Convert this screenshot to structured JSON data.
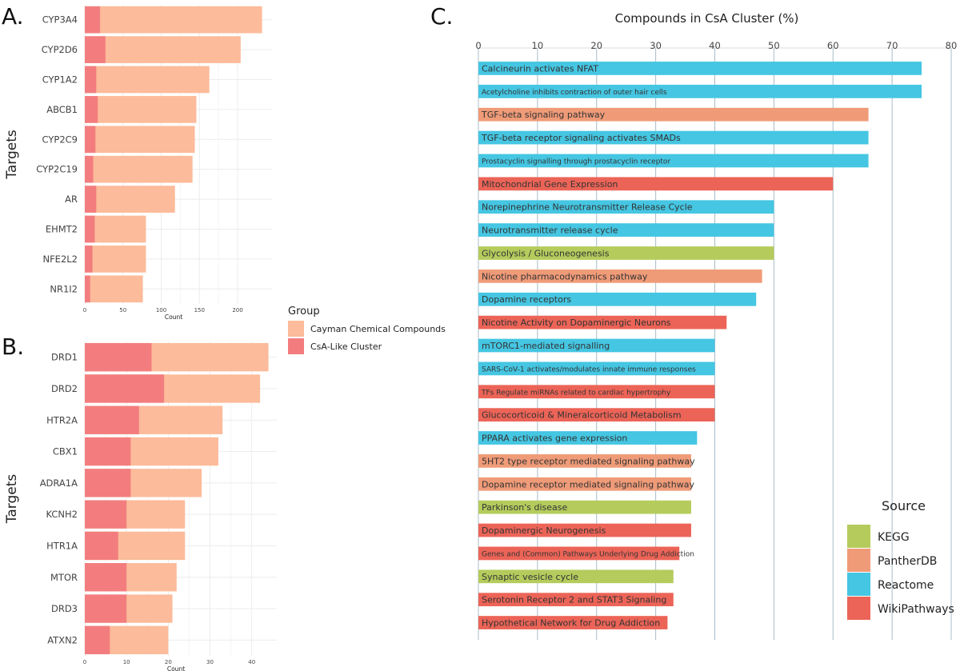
{
  "panel_letters": {
    "a": "A.",
    "b": "B.",
    "c": "C."
  },
  "chart_data": [
    {
      "type": "bar",
      "orientation": "horizontal",
      "stacked": false,
      "categories": [
        "CYP3A4",
        "CYP2D6",
        "CYP1A2",
        "ABCB1",
        "CYP2C9",
        "CYP2C19",
        "AR",
        "EHMT2",
        "NFE2L2",
        "NR1I2"
      ],
      "series": [
        {
          "name": "Cayman Chemical Compounds",
          "color": "#fcbb9a",
          "values": [
            232,
            204,
            163,
            146,
            144,
            141,
            118,
            80,
            80,
            76
          ]
        },
        {
          "name": "CsA-Like Cluster",
          "color": "#f37d7e",
          "values": [
            20,
            27,
            15,
            17,
            14,
            11,
            15,
            13,
            10,
            7
          ]
        }
      ],
      "xlabel": "Count",
      "ylabel": "Targets",
      "xticks": [
        0,
        50,
        100,
        150,
        200
      ],
      "xlim": [
        0,
        245
      ],
      "grid": true
    },
    {
      "type": "bar",
      "orientation": "horizontal",
      "stacked": false,
      "categories": [
        "DRD1",
        "DRD2",
        "HTR2A",
        "CBX1",
        "ADRA1A",
        "KCNH2",
        "HTR1A",
        "MTOR",
        "DRD3",
        "ATXN2"
      ],
      "series": [
        {
          "name": "Cayman Chemical Compounds",
          "color": "#fcbb9a",
          "values": [
            44,
            42,
            33,
            32,
            28,
            24,
            24,
            22,
            21,
            20
          ]
        },
        {
          "name": "CsA-Like Cluster",
          "color": "#f37d7e",
          "values": [
            16,
            19,
            13,
            11,
            11,
            10,
            8,
            10,
            10,
            6
          ]
        }
      ],
      "xlabel": "Count",
      "ylabel": "Targets",
      "xticks": [
        0,
        10,
        20,
        30,
        40
      ],
      "xlim": [
        0,
        46
      ],
      "grid": true
    },
    {
      "type": "bar",
      "orientation": "horizontal",
      "title": "Compounds in CsA Cluster (%)",
      "xticks": [
        0,
        10,
        20,
        30,
        40,
        50,
        60,
        70,
        80
      ],
      "xlim": [
        0,
        80
      ],
      "x_axis_position": "top",
      "legend_title": "Source",
      "legend_position": "right-bottom",
      "source_colors": {
        "KEGG": "#b5cc5d",
        "PantherDB": "#f09b78",
        "Reactome": "#45c6e2",
        "WikiPathways": "#ec6457"
      },
      "categories": [
        "Calcineurin activates NFAT",
        "Acetylcholine inhibits contraction of outer hair cells",
        "TGF-beta signaling pathway",
        "TGF-beta receptor signaling activates SMADs",
        "Prostacyclin signalling through prostacyclin receptor",
        "Mitochondrial Gene Expression",
        "Norepinephrine Neurotransmitter Release Cycle",
        "Neurotransmitter release cycle",
        "Glycolysis / Gluconeogenesis",
        "Nicotine pharmacodynamics pathway",
        "Dopamine receptors",
        "Nicotine Activity on Dopaminergic Neurons",
        "mTORC1-mediated signalling",
        "SARS-CoV-1 activates/modulates innate immune responses",
        "TFs Regulate miRNAs related to cardiac hypertrophy",
        "Glucocorticoid & Mineralcorticoid Metabolism",
        "PPARA activates gene expression",
        "5HT2 type receptor mediated signaling pathway",
        "Dopamine receptor mediated signaling pathway",
        "Parkinson's disease",
        "Dopaminergic Neurogenesis",
        "Genes and (Common) Pathways Underlying Drug Addiction",
        "Synaptic vesicle cycle",
        "Serotonin Receptor 2 and STAT3 Signaling",
        "Hypothetical Network for Drug Addiction"
      ],
      "values": [
        75,
        75,
        66,
        66,
        66,
        60,
        50,
        50,
        50,
        48,
        47,
        42,
        40,
        40,
        40,
        40,
        37,
        36,
        36,
        36,
        36,
        34,
        33,
        33,
        32
      ],
      "sources": [
        "Reactome",
        "Reactome",
        "PantherDB",
        "Reactome",
        "Reactome",
        "WikiPathways",
        "Reactome",
        "Reactome",
        "KEGG",
        "PantherDB",
        "Reactome",
        "WikiPathways",
        "Reactome",
        "Reactome",
        "WikiPathways",
        "WikiPathways",
        "Reactome",
        "PantherDB",
        "PantherDB",
        "KEGG",
        "WikiPathways",
        "WikiPathways",
        "KEGG",
        "WikiPathways",
        "WikiPathways"
      ],
      "grid": true
    }
  ],
  "legend_ab": {
    "title": "Group",
    "items": [
      {
        "label": "Cayman Chemical Compounds",
        "color": "#fcbb9a"
      },
      {
        "label": "CsA-Like Cluster",
        "color": "#f37d7e"
      }
    ]
  }
}
